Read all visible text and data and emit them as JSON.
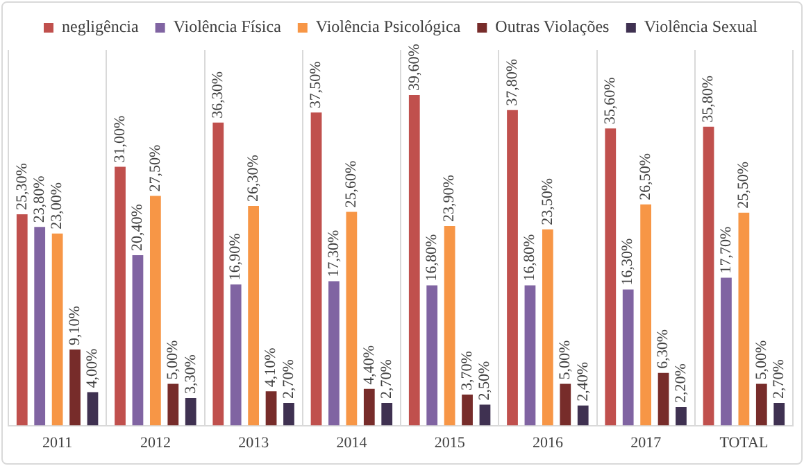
{
  "chart_data": {
    "type": "bar",
    "categories": [
      "2011",
      "2012",
      "2013",
      "2014",
      "2015",
      "2016",
      "2017",
      "TOTAL"
    ],
    "series": [
      {
        "name": "negligência",
        "color": "#c0504d",
        "values": [
          25.3,
          31.0,
          36.3,
          37.5,
          39.6,
          37.8,
          35.6,
          35.8
        ],
        "value_labels": [
          "25,30%",
          "31,00%",
          "36,30%",
          "37,50%",
          "39,60%",
          "37,80%",
          "35,60%",
          "35,80%"
        ]
      },
      {
        "name": "Violência Física",
        "color": "#8064a2",
        "values": [
          23.8,
          20.4,
          16.9,
          17.3,
          16.8,
          16.8,
          16.3,
          17.7
        ],
        "value_labels": [
          "23,80%",
          "20,40%",
          "16,90%",
          "17,30%",
          "16,80%",
          "16,80%",
          "16,30%",
          "17,70%"
        ]
      },
      {
        "name": "Violência Psicológica",
        "color": "#f79646",
        "values": [
          23.0,
          27.5,
          26.3,
          25.6,
          23.9,
          23.5,
          26.5,
          25.5
        ],
        "value_labels": [
          "23,00%",
          "27,50%",
          "26,30%",
          "25,60%",
          "23,90%",
          "23,50%",
          "26,50%",
          "25,50%"
        ]
      },
      {
        "name": "Outras Violações",
        "color": "#772c2a",
        "values": [
          9.1,
          5.0,
          4.1,
          4.4,
          3.7,
          5.0,
          6.3,
          5.0
        ],
        "value_labels": [
          "9,10%",
          "5,00%",
          "4,10%",
          "4,40%",
          "3,70%",
          "5,00%",
          "6,30%",
          "5,00%"
        ]
      },
      {
        "name": "Violência Sexual",
        "color": "#3f3151",
        "values": [
          4.0,
          3.3,
          2.7,
          2.7,
          2.5,
          2.4,
          2.2,
          2.7
        ],
        "value_labels": [
          "4,00%",
          "3,30%",
          "2,70%",
          "2,70%",
          "2,50%",
          "2,40%",
          "2,20%",
          "2,70%"
        ]
      }
    ],
    "grid": "x",
    "legend": "top"
  }
}
